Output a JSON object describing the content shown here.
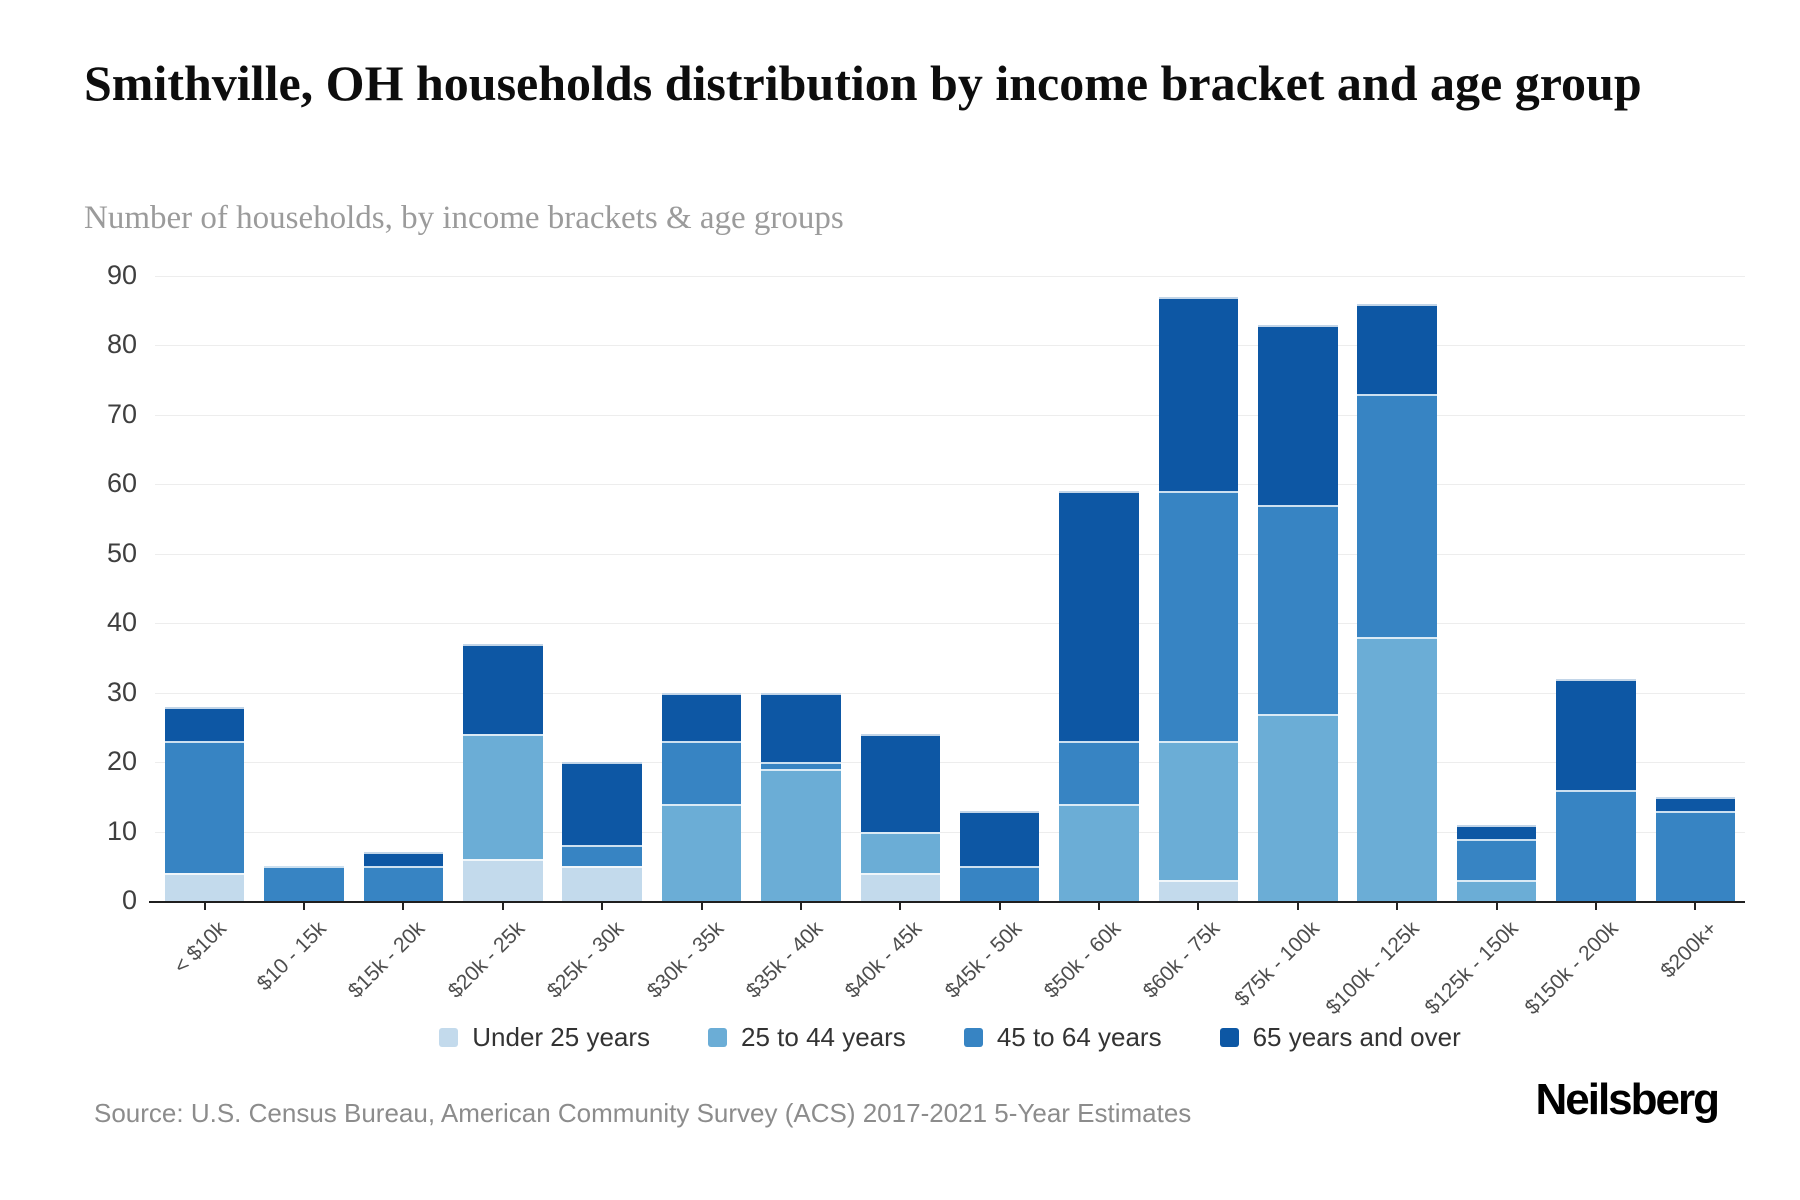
{
  "header": {
    "title": "Smithville, OH households distribution by income bracket and age group",
    "subtitle": "Number of households, by income brackets & age groups"
  },
  "chart_data": {
    "type": "bar",
    "stacked": true,
    "title": "Smithville, OH households distribution by income bracket and age group",
    "subtitle": "Number of households, by income brackets & age groups",
    "categories": [
      "< $10k",
      "$10 - 15k",
      "$15k - 20k",
      "$20k - 25k",
      "$25k - 30k",
      "$30k - 35k",
      "$35k - 40k",
      "$40k - 45k",
      "$45k - 50k",
      "$50k - 60k",
      "$60k - 75k",
      "$75k - 100k",
      "$100k - 125k",
      "$125k - 150k",
      "$150k - 200k",
      "$200k+"
    ],
    "series": [
      {
        "name": "Under 25 years",
        "color": "#c3daec",
        "values": [
          4,
          0,
          0,
          6,
          5,
          0,
          0,
          4,
          0,
          0,
          3,
          0,
          0,
          0,
          0,
          0
        ]
      },
      {
        "name": "25 to 44 years",
        "color": "#6badd6",
        "values": [
          0,
          0,
          0,
          18,
          0,
          14,
          19,
          6,
          0,
          14,
          20,
          27,
          38,
          3,
          0,
          0
        ]
      },
      {
        "name": "45 to 64 years",
        "color": "#3784c3",
        "values": [
          19,
          5,
          5,
          0,
          3,
          9,
          1,
          0,
          5,
          9,
          36,
          30,
          35,
          6,
          16,
          13
        ]
      },
      {
        "name": "65 years and over",
        "color": "#0d57a4",
        "values": [
          5,
          0,
          2,
          13,
          12,
          7,
          10,
          14,
          8,
          36,
          28,
          26,
          13,
          2,
          16,
          2
        ]
      }
    ],
    "totals": [
      28,
      5,
      7,
      37,
      20,
      30,
      30,
      24,
      13,
      59,
      87,
      83,
      86,
      11,
      32,
      15
    ],
    "ylabel": "",
    "xlabel": "",
    "ylim": [
      0,
      90
    ],
    "ytick_step": 10,
    "grid": "horizontal",
    "legend_position": "bottom"
  },
  "footer": {
    "source": "Source: U.S. Census Bureau, American Community Survey (ACS) 2017-2021 5-Year Estimates",
    "brand": "Neilsberg"
  }
}
